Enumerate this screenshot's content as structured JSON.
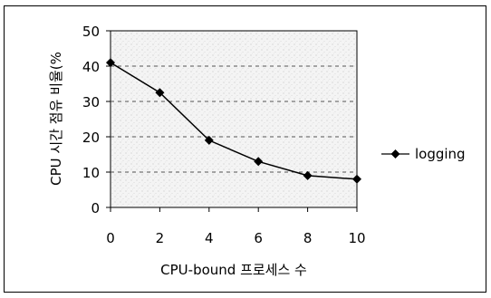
{
  "chart_data": {
    "type": "line",
    "title": "",
    "xlabel": "CPU-bound 프로세스 수",
    "ylabel": "CPU 시간 점유 비율(%",
    "x": [
      0,
      2,
      4,
      6,
      8,
      10
    ],
    "xlim": [
      0,
      10
    ],
    "ylim": [
      0,
      50
    ],
    "x_ticks": [
      "0",
      "2",
      "4",
      "6",
      "8",
      "10"
    ],
    "y_ticks": [
      "0",
      "10",
      "20",
      "30",
      "40",
      "50"
    ],
    "grid": "horizontal dashed",
    "legend_position": "right",
    "series": [
      {
        "name": "logging",
        "values": [
          41,
          32.5,
          19,
          13,
          9,
          8
        ],
        "color": "#000000",
        "marker": "diamond"
      }
    ]
  }
}
